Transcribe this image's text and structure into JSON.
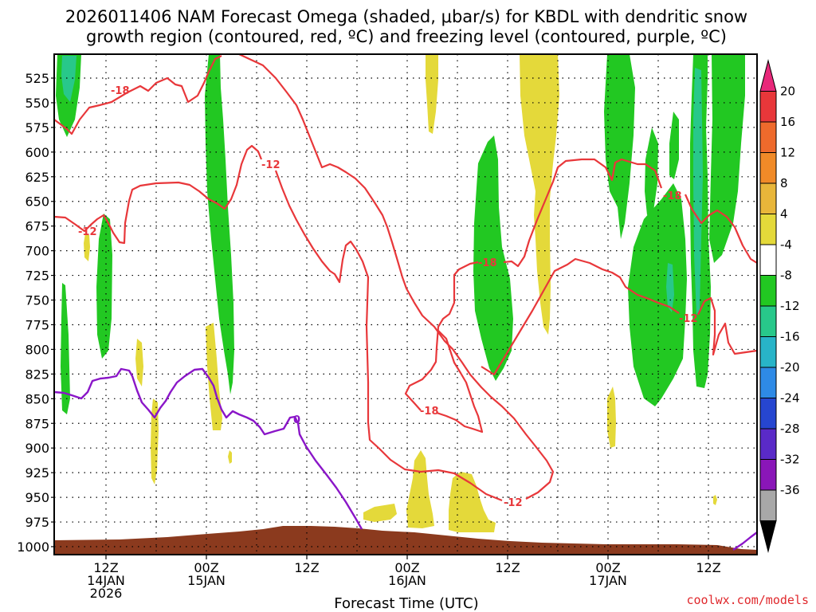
{
  "title": {
    "line1": "2026011406 NAM Forecast Omega (shaded, μbar/s) for KBDL with dendritic snow",
    "line2": "growth region (contoured, red, ºC) and freezing level (contoured, purple, ºC)"
  },
  "credit": "coolwx.com/models",
  "chart_data": {
    "type": "area",
    "title": "2026011406 NAM Forecast Omega (shaded, μbar/s) for KBDL with dendritic snow growth region (contoured, red, ºC) and freezing level (contoured, purple, ºC)",
    "xlabel": "Forecast Time (UTC)",
    "ylabel": "",
    "x_ticks": [
      {
        "time": "2026-01-14 12Z",
        "lines": [
          "12Z",
          "14JAN",
          "2026"
        ]
      },
      {
        "time": "2026-01-15 00Z",
        "lines": [
          "00Z",
          "15JAN"
        ]
      },
      {
        "time": "2026-01-15 12Z",
        "lines": [
          "12Z"
        ]
      },
      {
        "time": "2026-01-16 00Z",
        "lines": [
          "00Z",
          "16JAN"
        ]
      },
      {
        "time": "2026-01-16 12Z",
        "lines": [
          "12Z"
        ]
      },
      {
        "time": "2026-01-17 00Z",
        "lines": [
          "00Z",
          "17JAN"
        ]
      },
      {
        "time": "2026-01-17 12Z",
        "lines": [
          "12Z"
        ]
      }
    ],
    "x_range_hours_utc": [
      "2026-01-14 06Z",
      "2026-01-17 21Z"
    ],
    "y_ticks_hpa": [
      525,
      550,
      575,
      600,
      625,
      650,
      675,
      700,
      725,
      750,
      775,
      800,
      825,
      850,
      875,
      900,
      925,
      950,
      975,
      1000
    ],
    "y_range_hpa": [
      1000,
      500
    ],
    "grid": true,
    "colorbar": {
      "labels": [
        "20",
        "16",
        "12",
        "8",
        "4",
        "-4",
        "-8",
        "-12",
        "-16",
        "-20",
        "-24",
        "-28",
        "-32",
        "-36"
      ],
      "colors": [
        "#e8287a",
        "#e8373a",
        "#ee6a2c",
        "#f08a28",
        "#e8b63a",
        "#e4d93a",
        "#ffffff",
        "#22c822",
        "#28c88a",
        "#28b4c8",
        "#2e8ae6",
        "#2646d0",
        "#5a2ac8",
        "#8a16b8",
        "#a8a8a8",
        "#000000"
      ]
    },
    "contour_labels": {
      "red": [
        "-18",
        "-12",
        "-12",
        "-18",
        "-18",
        "-12",
        "-18",
        "-12"
      ],
      "purple": [
        "0"
      ]
    },
    "series": [
      {
        "name": "dendritic snow growth region (red, ºC)",
        "color": "#e8373a"
      },
      {
        "name": "freezing level (purple, ºC)",
        "color": "#8a16c8"
      }
    ],
    "surface_fill_color": "#8b3a1e"
  }
}
